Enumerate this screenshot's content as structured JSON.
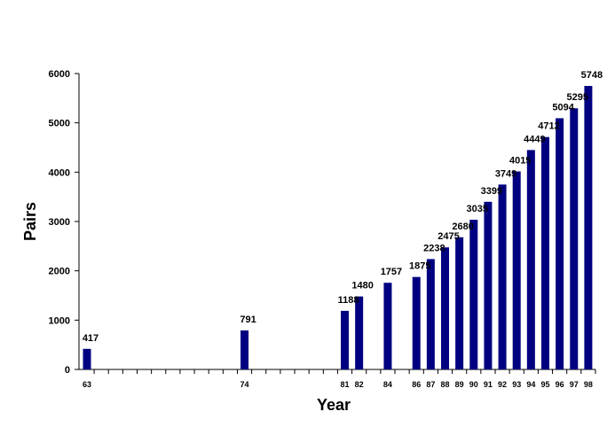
{
  "chart_data": {
    "type": "bar",
    "xlabel": "Year",
    "ylabel": "Pairs",
    "ylim": [
      0,
      6000
    ],
    "y_ticks": [
      "0",
      "1000",
      "2000",
      "3000",
      "4000",
      "5000",
      "6000"
    ],
    "bar_color": "#000080",
    "grid": false,
    "x_range": [
      63,
      98
    ],
    "x_tick_labels": [
      "63",
      "74",
      "81",
      "82",
      "84",
      "86",
      "87",
      "88",
      "89",
      "90",
      "91",
      "92",
      "93",
      "94",
      "95",
      "96",
      "97",
      "98"
    ],
    "x": [
      63,
      74,
      81,
      82,
      84,
      86,
      87,
      88,
      89,
      90,
      91,
      92,
      93,
      94,
      95,
      96,
      97,
      98
    ],
    "values": [
      417,
      791,
      1188,
      1480,
      1757,
      1875,
      2238,
      2475,
      2680,
      3035,
      3399,
      3749,
      4015,
      4449,
      4712,
      5094,
      5295,
      5748
    ],
    "value_labels": [
      "417",
      "791",
      "1188",
      "1480",
      "1757",
      "1875",
      "2238",
      "2475",
      "2680",
      "3035",
      "3399",
      "3749",
      "4015",
      "4449",
      "4712",
      "5094",
      "5295",
      "5748"
    ]
  }
}
